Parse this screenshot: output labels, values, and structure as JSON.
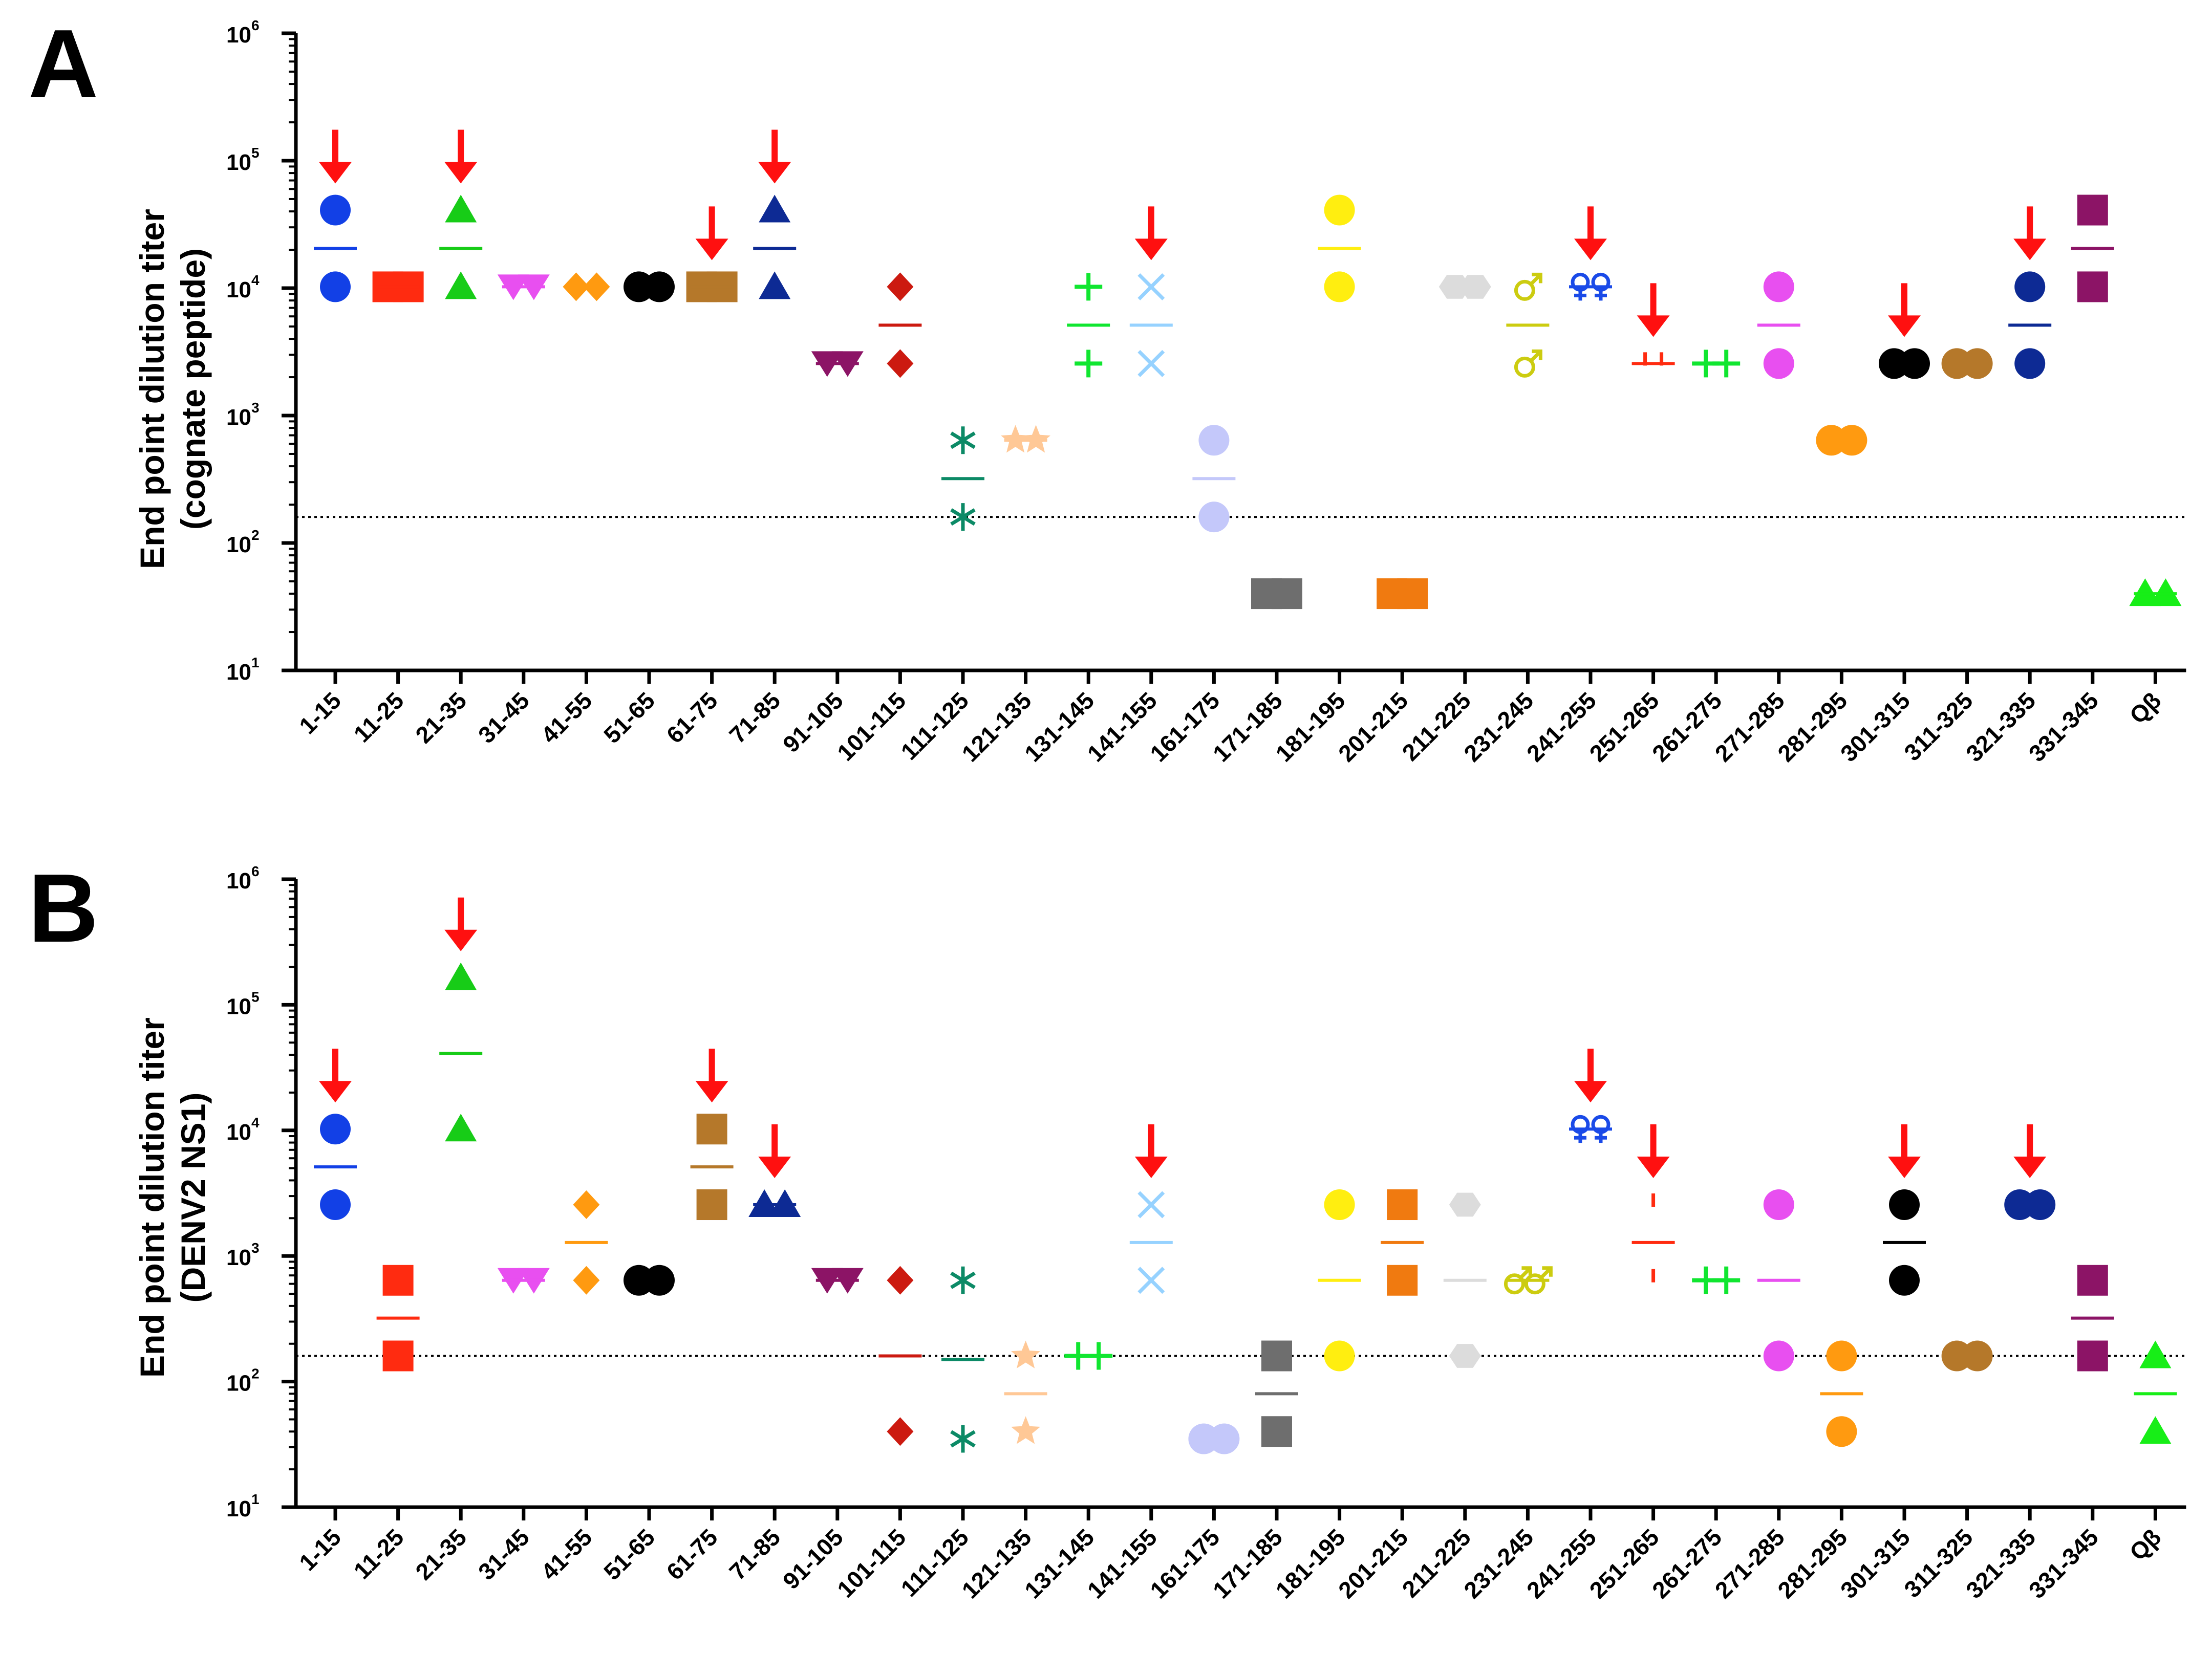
{
  "figure": {
    "marker_styles": [
      {
        "shape": "circle",
        "color": "#1240e6"
      },
      {
        "shape": "square",
        "color": "#ff2b10"
      },
      {
        "shape": "triangle",
        "color": "#17cc17"
      },
      {
        "shape": "triangle-down",
        "color": "#e84ff0"
      },
      {
        "shape": "diamond",
        "color": "#ff9a10"
      },
      {
        "shape": "circle",
        "color": "#000000"
      },
      {
        "shape": "square",
        "color": "#b5782a"
      },
      {
        "shape": "triangle",
        "color": "#0d2a94"
      },
      {
        "shape": "triangle-down",
        "color": "#8c1466"
      },
      {
        "shape": "diamond",
        "color": "#cc1a10"
      },
      {
        "shape": "asterisk",
        "color": "#0c8a66"
      },
      {
        "shape": "star",
        "color": "#ffc896"
      },
      {
        "shape": "plus",
        "color": "#10e630"
      },
      {
        "shape": "x",
        "color": "#96d2ff"
      },
      {
        "shape": "circle",
        "color": "#c4c8fa"
      },
      {
        "shape": "square",
        "color": "#6e6e6e"
      },
      {
        "shape": "circle",
        "color": "#ffee10"
      },
      {
        "shape": "square",
        "color": "#f07a10"
      },
      {
        "shape": "hexagon",
        "color": "#dcdcdc"
      },
      {
        "shape": "male",
        "color": "#cccc10"
      },
      {
        "shape": "female",
        "color": "#1a4ae8"
      },
      {
        "shape": "tick",
        "color": "#ff2b10"
      },
      {
        "shape": "plus",
        "color": "#10e630"
      },
      {
        "shape": "circle",
        "color": "#e84ff0"
      },
      {
        "shape": "circle",
        "color": "#ff9a10"
      },
      {
        "shape": "circle",
        "color": "#000000"
      },
      {
        "shape": "circle",
        "color": "#b5782a"
      },
      {
        "shape": "circle",
        "color": "#0d2a94"
      },
      {
        "shape": "square",
        "color": "#8c1466"
      },
      {
        "shape": "triangle",
        "color": "#17ee17"
      }
    ],
    "arrow_color": "#ff1010"
  },
  "chart_data": [
    {
      "type": "scatter",
      "panel_label": "A",
      "ylabel_line1": "End point dilution titer",
      "ylabel_line2": "(cognate peptide)",
      "yscale": "log",
      "ylim": [
        10,
        1000000
      ],
      "ytick_labels": [
        {
          "base": "10",
          "exp": "1"
        },
        {
          "base": "10",
          "exp": "2"
        },
        {
          "base": "10",
          "exp": "3"
        },
        {
          "base": "10",
          "exp": "4"
        },
        {
          "base": "10",
          "exp": "5"
        },
        {
          "base": "10",
          "exp": "6"
        }
      ],
      "cutoff": 160,
      "categories": [
        "1-15",
        "11-25",
        "21-35",
        "31-45",
        "41-55",
        "51-65",
        "61-75",
        "71-85",
        "91-105",
        "101-115",
        "111-125",
        "121-135",
        "131-145",
        "141-155",
        "161-175",
        "171-185",
        "181-195",
        "201-215",
        "211-225",
        "231-245",
        "241-255",
        "251-265",
        "261-275",
        "271-285",
        "281-295",
        "301-315",
        "311-325",
        "321-335",
        "331-345",
        "Qβ"
      ],
      "points": [
        [
          10240,
          40960
        ],
        [
          10240,
          10240
        ],
        [
          10240,
          40960
        ],
        [
          10240,
          10240
        ],
        [
          10240,
          10240
        ],
        [
          10240,
          10240
        ],
        [
          10240,
          10240
        ],
        [
          10240,
          40960
        ],
        [
          2560,
          2560
        ],
        [
          2560,
          10240
        ],
        [
          160,
          640
        ],
        [
          640,
          640
        ],
        [
          2560,
          10240
        ],
        [
          2560,
          10240
        ],
        [
          160,
          640
        ],
        [
          40,
          40
        ],
        [
          10240,
          40960
        ],
        [
          40,
          40
        ],
        [
          10240,
          10240
        ],
        [
          2560,
          10240
        ],
        [
          10240,
          10240
        ],
        [
          2560,
          2560
        ],
        [
          2560,
          2560
        ],
        [
          2560,
          10240
        ],
        [
          640,
          640
        ],
        [
          2560,
          2560
        ],
        [
          2560,
          2560
        ],
        [
          2560,
          10240
        ],
        [
          10240,
          40960
        ],
        [
          40,
          40
        ]
      ],
      "arrows": [
        "1-15",
        "21-35",
        "61-75",
        "71-85",
        "141-155",
        "241-255",
        "251-265",
        "301-315",
        "321-335"
      ]
    },
    {
      "type": "scatter",
      "panel_label": "B",
      "ylabel_line1": "End point dilution titer",
      "ylabel_line2": "(DENV2 NS1)",
      "yscale": "log",
      "ylim": [
        10,
        1000000
      ],
      "ytick_labels": [
        {
          "base": "10",
          "exp": "1"
        },
        {
          "base": "10",
          "exp": "2"
        },
        {
          "base": "10",
          "exp": "3"
        },
        {
          "base": "10",
          "exp": "4"
        },
        {
          "base": "10",
          "exp": "5"
        },
        {
          "base": "10",
          "exp": "6"
        }
      ],
      "cutoff": 160,
      "categories": [
        "1-15",
        "11-25",
        "21-35",
        "31-45",
        "41-55",
        "51-65",
        "61-75",
        "71-85",
        "91-105",
        "101-115",
        "111-125",
        "121-135",
        "131-145",
        "141-155",
        "161-175",
        "171-185",
        "181-195",
        "201-215",
        "211-225",
        "231-245",
        "241-255",
        "251-265",
        "261-275",
        "271-285",
        "281-295",
        "301-315",
        "311-325",
        "321-335",
        "331-345",
        "Qβ"
      ],
      "points": [
        [
          2560,
          10240
        ],
        [
          160,
          640
        ],
        [
          10240,
          163840
        ],
        [
          640,
          640
        ],
        [
          640,
          2560
        ],
        [
          640,
          640
        ],
        [
          2560,
          10240
        ],
        [
          2560,
          2560
        ],
        [
          640,
          640
        ],
        [
          40,
          640
        ],
        [
          35,
          640
        ],
        [
          40,
          160
        ],
        [
          160,
          160
        ],
        [
          640,
          2560
        ],
        [
          35,
          35
        ],
        [
          40,
          160
        ],
        [
          160,
          2560
        ],
        [
          640,
          2560
        ],
        [
          160,
          2560
        ],
        [
          640,
          640
        ],
        [
          10240,
          10240
        ],
        [
          640,
          2560
        ],
        [
          640,
          640
        ],
        [
          160,
          2560
        ],
        [
          40,
          160
        ],
        [
          640,
          2560
        ],
        [
          160,
          160
        ],
        [
          2560,
          2560
        ],
        [
          160,
          640
        ],
        [
          40,
          160
        ]
      ],
      "arrows": [
        "1-15",
        "21-35",
        "61-75",
        "71-85",
        "141-155",
        "241-255",
        "251-265",
        "301-315",
        "321-335"
      ]
    }
  ]
}
